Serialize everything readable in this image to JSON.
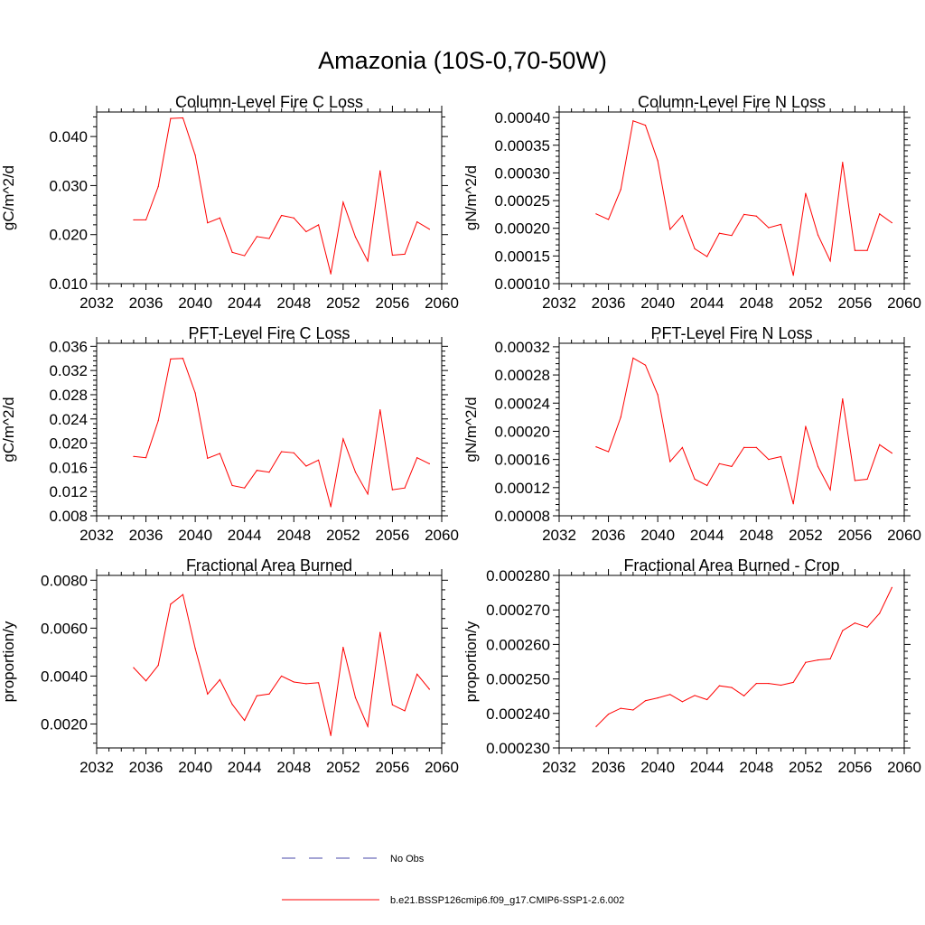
{
  "figure": {
    "title": "Amazonia (10S-0,70-50W)"
  },
  "legend": {
    "entries": [
      {
        "label": "No Obs",
        "color": "#4a4aa8",
        "style": "dashed"
      },
      {
        "label": "b.e21.BSSP126cmip6.f09_g17.CMIP6-SSP1-2.6.002",
        "color": "#ff0000",
        "style": "solid"
      }
    ]
  },
  "chart_data": [
    {
      "type": "line",
      "title": "Column-Level Fire C Loss",
      "ylabel": "gC/m^2/d",
      "xlabel": "",
      "xlim": [
        2032,
        2060
      ],
      "ylim": [
        0.01,
        0.045
      ],
      "xticks": [
        2032,
        2036,
        2040,
        2044,
        2048,
        2052,
        2056,
        2060
      ],
      "xtick_labels": [
        "2032",
        "2036",
        "2040",
        "2044",
        "2048",
        "2052",
        "2056",
        "2060"
      ],
      "yticks": [
        0.01,
        0.02,
        0.03,
        0.04
      ],
      "ytick_labels": [
        "0.010",
        "0.020",
        "0.030",
        "0.040"
      ],
      "series": [
        {
          "name": "b.e21.BSSP126cmip6.f09_g17.CMIP6-SSP1-2.6.002",
          "color": "#ff0000",
          "x": [
            2035,
            2036,
            2037,
            2038,
            2039,
            2040,
            2041,
            2042,
            2043,
            2044,
            2045,
            2046,
            2047,
            2048,
            2049,
            2050,
            2051,
            2052,
            2053,
            2054,
            2055,
            2056,
            2057,
            2058,
            2059
          ],
          "values": [
            0.023,
            0.023,
            0.0298,
            0.0437,
            0.0438,
            0.0362,
            0.0224,
            0.0234,
            0.0164,
            0.0157,
            0.0196,
            0.0192,
            0.0239,
            0.0234,
            0.0206,
            0.022,
            0.012,
            0.0266,
            0.0195,
            0.0146,
            0.033,
            0.0158,
            0.016,
            0.0226,
            0.0211
          ]
        }
      ]
    },
    {
      "type": "line",
      "title": "Column-Level Fire N Loss",
      "ylabel": "gN/m^2/d",
      "xlabel": "",
      "xlim": [
        2032,
        2060
      ],
      "ylim": [
        0.0001,
        0.00041
      ],
      "xticks": [
        2032,
        2036,
        2040,
        2044,
        2048,
        2052,
        2056,
        2060
      ],
      "xtick_labels": [
        "2032",
        "2036",
        "2040",
        "2044",
        "2048",
        "2052",
        "2056",
        "2060"
      ],
      "yticks": [
        0.0001,
        0.00015,
        0.0002,
        0.00025,
        0.0003,
        0.00035,
        0.0004
      ],
      "ytick_labels": [
        "0.00010",
        "0.00015",
        "0.00020",
        "0.00025",
        "0.00030",
        "0.00035",
        "0.00040"
      ],
      "series": [
        {
          "name": "b.e21.BSSP126cmip6.f09_g17.CMIP6-SSP1-2.6.002",
          "color": "#ff0000",
          "x": [
            2035,
            2036,
            2037,
            2038,
            2039,
            2040,
            2041,
            2042,
            2043,
            2044,
            2045,
            2046,
            2047,
            2048,
            2049,
            2050,
            2051,
            2052,
            2053,
            2054,
            2055,
            2056,
            2057,
            2058,
            2059
          ],
          "values": [
            0.000226,
            0.000216,
            0.00027,
            0.000394,
            0.000386,
            0.000322,
            0.000198,
            0.000223,
            0.000163,
            0.000149,
            0.000191,
            0.000187,
            0.000225,
            0.000222,
            0.000201,
            0.000207,
            0.000115,
            0.000263,
            0.000188,
            0.000141,
            0.000319,
            0.00016,
            0.00016,
            0.000226,
            0.00021
          ]
        }
      ]
    },
    {
      "type": "line",
      "title": "PFT-Level Fire C Loss",
      "ylabel": "gC/m^2/d",
      "xlabel": "",
      "xlim": [
        2032,
        2060
      ],
      "ylim": [
        0.008,
        0.0365
      ],
      "xticks": [
        2032,
        2036,
        2040,
        2044,
        2048,
        2052,
        2056,
        2060
      ],
      "xtick_labels": [
        "2032",
        "2036",
        "2040",
        "2044",
        "2048",
        "2052",
        "2056",
        "2060"
      ],
      "yticks": [
        0.008,
        0.012,
        0.016,
        0.02,
        0.024,
        0.028,
        0.032,
        0.036
      ],
      "ytick_labels": [
        "0.008",
        "0.012",
        "0.016",
        "0.020",
        "0.024",
        "0.028",
        "0.032",
        "0.036"
      ],
      "series": [
        {
          "name": "b.e21.BSSP126cmip6.f09_g17.CMIP6-SSP1-2.6.002",
          "color": "#ff0000",
          "x": [
            2035,
            2036,
            2037,
            2038,
            2039,
            2040,
            2041,
            2042,
            2043,
            2044,
            2045,
            2046,
            2047,
            2048,
            2049,
            2050,
            2051,
            2052,
            2053,
            2054,
            2055,
            2056,
            2057,
            2058,
            2059
          ],
          "values": [
            0.0178,
            0.0176,
            0.0237,
            0.0339,
            0.034,
            0.0283,
            0.0175,
            0.0183,
            0.013,
            0.0126,
            0.0155,
            0.0152,
            0.0186,
            0.0184,
            0.0162,
            0.0172,
            0.0095,
            0.0207,
            0.0152,
            0.0116,
            0.0255,
            0.0123,
            0.0126,
            0.0176,
            0.0166
          ]
        }
      ]
    },
    {
      "type": "line",
      "title": "PFT-Level Fire N Loss",
      "ylabel": "gN/m^2/d",
      "xlabel": "",
      "xlim": [
        2032,
        2060
      ],
      "ylim": [
        8e-05,
        0.000325
      ],
      "xticks": [
        2032,
        2036,
        2040,
        2044,
        2048,
        2052,
        2056,
        2060
      ],
      "xtick_labels": [
        "2032",
        "2036",
        "2040",
        "2044",
        "2048",
        "2052",
        "2056",
        "2060"
      ],
      "yticks": [
        8e-05,
        0.00012,
        0.00016,
        0.0002,
        0.00024,
        0.00028,
        0.00032
      ],
      "ytick_labels": [
        "0.00008",
        "0.00012",
        "0.00016",
        "0.00020",
        "0.00024",
        "0.00028",
        "0.00032"
      ],
      "series": [
        {
          "name": "b.e21.BSSP126cmip6.f09_g17.CMIP6-SSP1-2.6.002",
          "color": "#ff0000",
          "x": [
            2035,
            2036,
            2037,
            2038,
            2039,
            2040,
            2041,
            2042,
            2043,
            2044,
            2045,
            2046,
            2047,
            2048,
            2049,
            2050,
            2051,
            2052,
            2053,
            2054,
            2055,
            2056,
            2057,
            2058,
            2059
          ],
          "values": [
            0.000178,
            0.000171,
            0.00022,
            0.000304,
            0.000294,
            0.000252,
            0.000157,
            0.000177,
            0.000132,
            0.000123,
            0.000154,
            0.00015,
            0.000177,
            0.000177,
            0.00016,
            0.000164,
            9.7e-05,
            0.000207,
            0.00015,
            0.000117,
            0.000246,
            0.00013,
            0.000132,
            0.000181,
            0.000169
          ]
        }
      ]
    },
    {
      "type": "line",
      "title": "Fractional Area Burned",
      "ylabel": "proportion/y",
      "xlabel": "",
      "xlim": [
        2032,
        2060
      ],
      "ylim": [
        0.001,
        0.0082
      ],
      "xticks": [
        2032,
        2036,
        2040,
        2044,
        2048,
        2052,
        2056,
        2060
      ],
      "xtick_labels": [
        "2032",
        "2036",
        "2040",
        "2044",
        "2048",
        "2052",
        "2056",
        "2060"
      ],
      "yticks": [
        0.002,
        0.004,
        0.006,
        0.008
      ],
      "ytick_labels": [
        "0.0020",
        "0.0040",
        "0.0060",
        "0.0080"
      ],
      "series": [
        {
          "name": "b.e21.BSSP126cmip6.f09_g17.CMIP6-SSP1-2.6.002",
          "color": "#ff0000",
          "x": [
            2035,
            2036,
            2037,
            2038,
            2039,
            2040,
            2041,
            2042,
            2043,
            2044,
            2045,
            2046,
            2047,
            2048,
            2049,
            2050,
            2051,
            2052,
            2053,
            2054,
            2055,
            2056,
            2057,
            2058,
            2059
          ],
          "values": [
            0.00435,
            0.0038,
            0.00445,
            0.007,
            0.0074,
            0.00515,
            0.00325,
            0.00385,
            0.00282,
            0.00215,
            0.00318,
            0.00325,
            0.004,
            0.00375,
            0.00368,
            0.00372,
            0.00152,
            0.0052,
            0.0031,
            0.0019,
            0.00582,
            0.0028,
            0.00255,
            0.00408,
            0.00345
          ]
        }
      ]
    },
    {
      "type": "line",
      "title": "Fractional Area Burned - Crop",
      "ylabel": "proportion/y",
      "xlabel": "",
      "xlim": [
        2032,
        2060
      ],
      "ylim": [
        0.00023,
        0.00028
      ],
      "xticks": [
        2032,
        2036,
        2040,
        2044,
        2048,
        2052,
        2056,
        2060
      ],
      "xtick_labels": [
        "2032",
        "2036",
        "2040",
        "2044",
        "2048",
        "2052",
        "2056",
        "2060"
      ],
      "yticks": [
        0.00023,
        0.00024,
        0.00025,
        0.00026,
        0.00027,
        0.00028
      ],
      "ytick_labels": [
        "0.000230",
        "0.000240",
        "0.000250",
        "0.000260",
        "0.000270",
        "0.000280"
      ],
      "series": [
        {
          "name": "b.e21.BSSP126cmip6.f09_g17.CMIP6-SSP1-2.6.002",
          "color": "#ff0000",
          "x": [
            2035,
            2036,
            2037,
            2038,
            2039,
            2040,
            2041,
            2042,
            2043,
            2044,
            2045,
            2046,
            2047,
            2048,
            2049,
            2050,
            2051,
            2052,
            2053,
            2054,
            2055,
            2056,
            2057,
            2058,
            2059
          ],
          "values": [
            0.0002362,
            0.0002398,
            0.0002415,
            0.000241,
            0.0002437,
            0.0002445,
            0.0002455,
            0.0002434,
            0.0002452,
            0.000244,
            0.000248,
            0.0002475,
            0.0002451,
            0.0002487,
            0.0002487,
            0.0002482,
            0.000249,
            0.0002548,
            0.0002555,
            0.0002558,
            0.000264,
            0.0002662,
            0.000265,
            0.000269,
            0.0002765
          ]
        }
      ]
    }
  ]
}
